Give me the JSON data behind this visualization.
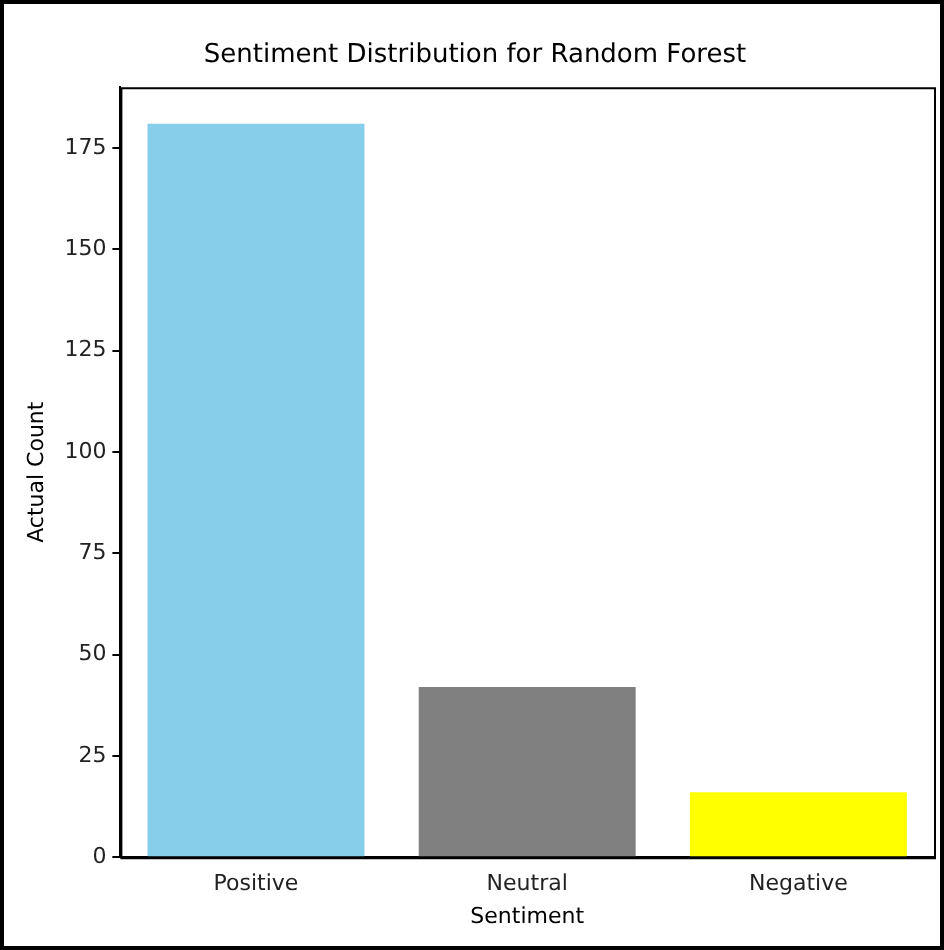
{
  "chart_data": {
    "type": "bar",
    "title": "Sentiment Distribution for Random Forest",
    "xlabel": "Sentiment",
    "ylabel": "Actual Count",
    "categories": [
      "Positive",
      "Neutral",
      "Negative"
    ],
    "values": [
      181,
      42,
      16
    ],
    "colors": [
      "#87ceeb",
      "#808080",
      "#ffff00"
    ],
    "ylim": [
      0,
      190
    ],
    "yticks": [
      0,
      25,
      50,
      75,
      100,
      125,
      150,
      175
    ],
    "grid": false,
    "legend": false
  }
}
